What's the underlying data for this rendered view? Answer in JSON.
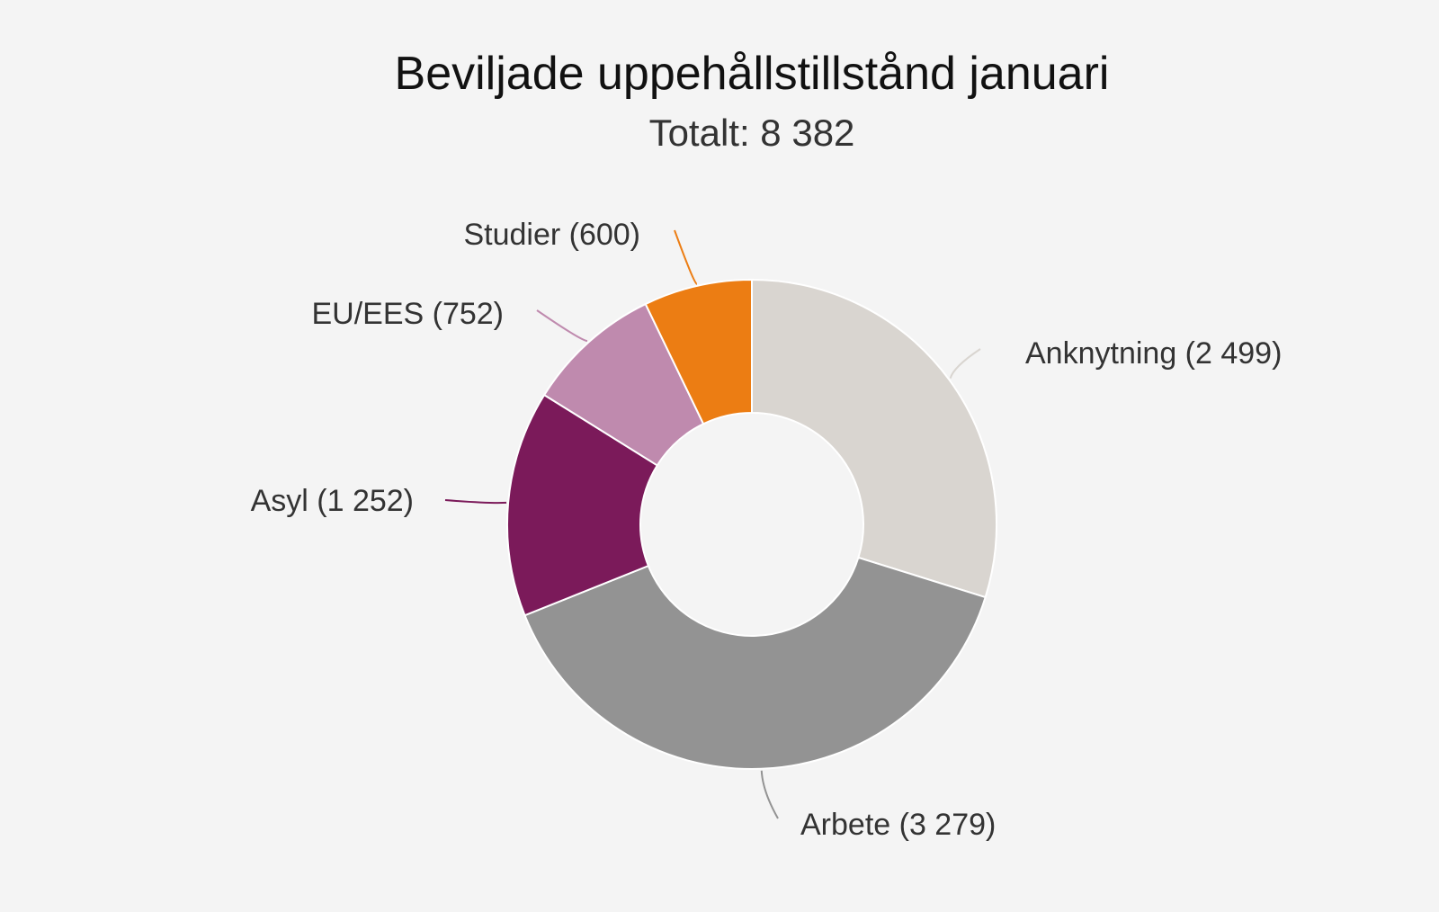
{
  "chart_data": {
    "type": "pie",
    "title": "Beviljade uppehållstillstånd januari",
    "subtitle": "Totalt: 8 382",
    "donut": true,
    "slices": [
      {
        "name": "Anknytning",
        "value": 2499,
        "label": "Anknytning (2 499)",
        "color": "#d9d5d0"
      },
      {
        "name": "Arbete",
        "value": 3279,
        "label": "Arbete (3 279)",
        "color": "#939393"
      },
      {
        "name": "Asyl",
        "value": 1252,
        "label": "Asyl (1 252)",
        "color": "#7b1a5a"
      },
      {
        "name": "EU/EES",
        "value": 752,
        "label": "EU/EES (752)",
        "color": "#bf8aae"
      },
      {
        "name": "Studier",
        "value": 600,
        "label": "Studier (600)",
        "color": "#ec7d13"
      }
    ],
    "connector_colors": {
      "Anknytning": "#d9d5d0",
      "Arbete": "#939393",
      "Asyl": "#7b1a5a",
      "EU/EES": "#bf8aae",
      "Studier": "#ec7d13"
    },
    "background": "#f4f4f4"
  }
}
